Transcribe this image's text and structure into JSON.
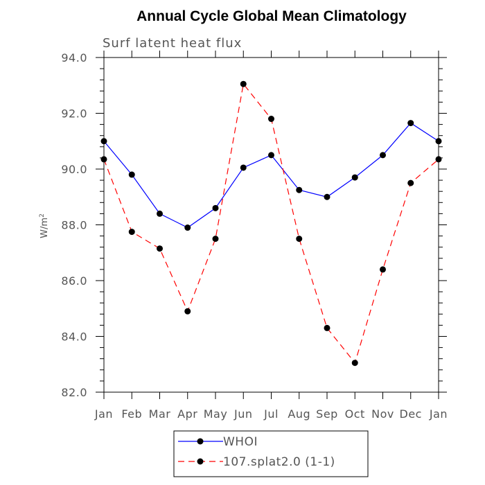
{
  "chart_data": {
    "type": "line",
    "title": "Annual Cycle Global Mean Climatology",
    "subtitle": "Surf latent heat flux",
    "ylabel_base": "W/m",
    "ylabel_sup": "2",
    "xlabel": "",
    "categories": [
      "Jan",
      "Feb",
      "Mar",
      "Apr",
      "May",
      "Jun",
      "Jul",
      "Aug",
      "Sep",
      "Oct",
      "Nov",
      "Dec",
      "Jan"
    ],
    "ylim": [
      82.0,
      94.0
    ],
    "yticks": [
      "82.0",
      "84.0",
      "86.0",
      "88.0",
      "90.0",
      "92.0",
      "94.0"
    ],
    "grid": false,
    "legend_position": "bottom-center",
    "series": [
      {
        "name": "WHOI",
        "color": "#0000ff",
        "dashed": false,
        "values": [
          91.0,
          89.8,
          88.4,
          87.9,
          88.6,
          90.05,
          90.5,
          89.25,
          89.0,
          89.7,
          90.5,
          91.65,
          91.0
        ]
      },
      {
        "name": "107.splat2.0 (1-1)",
        "color": "#ff0000",
        "dashed": true,
        "values": [
          90.35,
          87.75,
          87.15,
          84.9,
          87.5,
          93.05,
          91.8,
          87.5,
          84.3,
          83.05,
          86.4,
          89.5,
          90.35
        ]
      }
    ]
  }
}
